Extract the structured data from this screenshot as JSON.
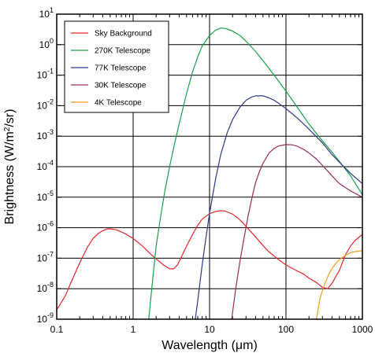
{
  "chart_data": {
    "type": "line",
    "title": "",
    "xlabel_prefix": "Wavelength (",
    "xlabel_unit": "μm",
    "xlabel_suffix": ")",
    "ylabel_prefix": "Brightness (W/m",
    "ylabel_sup": "2",
    "ylabel_suffix": "/sr)",
    "x_scale": "log",
    "y_scale": "log",
    "xlim": [
      0.1,
      1000
    ],
    "ylim": [
      1e-09,
      10
    ],
    "grid": true,
    "legend_position": "top-left",
    "x_ticks": [
      {
        "value": 0.1,
        "label": "0.1"
      },
      {
        "value": 1,
        "label": "1"
      },
      {
        "value": 10,
        "label": "10"
      },
      {
        "value": 100,
        "label": "100"
      },
      {
        "value": 1000,
        "label": "1000"
      }
    ],
    "y_ticks": [
      {
        "value": 10,
        "base": "10",
        "exp": "1"
      },
      {
        "value": 1,
        "base": "10",
        "exp": "0"
      },
      {
        "value": 0.1,
        "base": "10",
        "exp": "-1"
      },
      {
        "value": 0.01,
        "base": "10",
        "exp": "-2"
      },
      {
        "value": 0.001,
        "base": "10",
        "exp": "-3"
      },
      {
        "value": 0.0001,
        "base": "10",
        "exp": "-4"
      },
      {
        "value": 1e-05,
        "base": "10",
        "exp": "-5"
      },
      {
        "value": 1e-06,
        "base": "10",
        "exp": "-6"
      },
      {
        "value": 1e-07,
        "base": "10",
        "exp": "-7"
      },
      {
        "value": 1e-08,
        "base": "10",
        "exp": "-8"
      },
      {
        "value": 1e-09,
        "base": "10",
        "exp": "-9"
      }
    ],
    "series": [
      {
        "name": "Sky Background",
        "color": "#e8262b",
        "x": [
          0.1,
          0.13,
          0.16,
          0.2,
          0.25,
          0.3,
          0.35,
          0.4,
          0.45,
          0.5,
          0.6,
          0.7,
          0.8,
          1.0,
          1.3,
          1.7,
          2.0,
          2.5,
          3.0,
          3.4,
          3.8,
          4.2,
          5,
          6,
          7,
          8,
          10,
          12,
          14,
          16,
          20,
          25,
          30,
          40,
          50,
          60,
          80,
          100,
          130,
          170,
          200,
          250,
          300,
          350,
          400,
          500,
          600,
          700,
          800,
          1000
        ],
        "y": [
          2e-09,
          6e-09,
          2e-08,
          7e-08,
          2.2e-07,
          4.5e-07,
          6.5e-07,
          8e-07,
          9e-07,
          9.2e-07,
          8.5e-07,
          7.3e-07,
          6.2e-07,
          4.4e-07,
          2.6e-07,
          1.35e-07,
          9.5e-08,
          6e-08,
          4.5e-08,
          4.5e-08,
          6e-08,
          1e-07,
          2.5e-07,
          6e-07,
          1.2e-06,
          1.9e-06,
          2.9e-06,
          3.4e-06,
          3.6e-06,
          3.5e-06,
          2.8e-06,
          1.8e-06,
          1.1e-06,
          5e-07,
          2.6e-07,
          1.6e-07,
          9e-08,
          6e-08,
          4.2e-08,
          3e-08,
          2.2e-08,
          1.6e-08,
          1.1e-08,
          1e-08,
          1.5e-08,
          4e-08,
          1.3e-07,
          2.5e-07,
          3.8e-07,
          6e-07
        ]
      },
      {
        "name": "270K Telescope",
        "color": "#1aa04b",
        "x": [
          1.6,
          1.8,
          2.0,
          2.3,
          2.6,
          3.0,
          3.5,
          4.0,
          5,
          6,
          7,
          8,
          10,
          12,
          14,
          16,
          20,
          25,
          30,
          40,
          50,
          70,
          100,
          150,
          200,
          300,
          400,
          500,
          700,
          1000
        ],
        "y": [
          1e-09,
          2e-08,
          2.5e-07,
          2.5e-06,
          1.6e-05,
          0.0001,
          0.0006,
          0.0025,
          0.025,
          0.13,
          0.4,
          0.9,
          2.0,
          3.0,
          3.5,
          3.4,
          2.8,
          2.0,
          1.3,
          0.6,
          0.3,
          0.1,
          0.03,
          0.007,
          0.0025,
          0.0007,
          0.0003,
          0.00015,
          5e-05,
          1.2e-05
        ]
      },
      {
        "name": "77K Telescope",
        "color": "#2b3a8c",
        "x": [
          6.5,
          7,
          8,
          9,
          10,
          12,
          14,
          17,
          20,
          25,
          30,
          35,
          40,
          50,
          60,
          70,
          80,
          100,
          120,
          150,
          200,
          300,
          400,
          500,
          700,
          1000
        ],
        "y": [
          1e-09,
          4e-09,
          6e-08,
          5e-07,
          3e-06,
          4e-05,
          0.00025,
          0.0013,
          0.0035,
          0.009,
          0.015,
          0.019,
          0.021,
          0.021,
          0.018,
          0.015,
          0.012,
          0.008,
          0.0055,
          0.0034,
          0.0017,
          0.0006,
          0.00025,
          0.00014,
          6e-05,
          2.8e-05
        ]
      },
      {
        "name": "30K Telescope",
        "color": "#9b2a5c",
        "x": [
          19.5,
          22,
          25,
          28,
          32,
          36,
          40,
          45,
          50,
          60,
          70,
          80,
          100,
          120,
          140,
          170,
          200,
          250,
          300,
          400,
          500,
          700,
          1000
        ],
        "y": [
          1e-09,
          1e-08,
          8e-08,
          4e-07,
          2.5e-06,
          1e-05,
          3e-05,
          7e-05,
          0.00013,
          0.00028,
          0.0004,
          0.00048,
          0.00053,
          0.00052,
          0.00047,
          0.00037,
          0.00028,
          0.00018,
          0.00011,
          5e-05,
          2.8e-05,
          1.6e-05,
          1e-05
        ]
      },
      {
        "name": "4K Telescope",
        "color": "#f39a1e",
        "x": [
          250,
          280,
          320,
          360,
          400,
          450,
          500,
          600,
          700,
          800,
          1000
        ],
        "y": [
          1e-09,
          5e-09,
          1.4e-08,
          2.8e-08,
          4.6e-08,
          6.8e-08,
          9e-08,
          1.25e-07,
          1.5e-07,
          1.65e-07,
          1.75e-07
        ]
      }
    ]
  }
}
